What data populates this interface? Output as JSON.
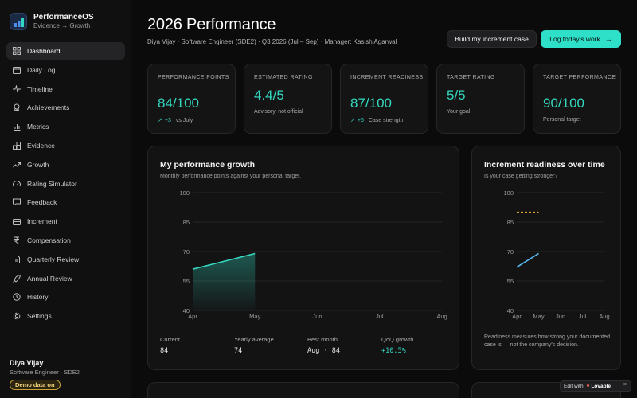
{
  "brand": {
    "title": "PerformanceOS",
    "subtitle": "Evidence → Growth"
  },
  "nav": [
    {
      "label": "Dashboard",
      "icon": "grid-icon",
      "active": true
    },
    {
      "label": "Daily Log",
      "icon": "calendar-icon"
    },
    {
      "label": "Timeline",
      "icon": "pulse-icon"
    },
    {
      "label": "Achievements",
      "icon": "award-icon"
    },
    {
      "label": "Metrics",
      "icon": "bar-chart-icon"
    },
    {
      "label": "Evidence",
      "icon": "blocks-icon"
    },
    {
      "label": "Growth",
      "icon": "trend-up-icon"
    },
    {
      "label": "Rating Simulator",
      "icon": "gauge-icon"
    },
    {
      "label": "Feedback",
      "icon": "message-icon"
    },
    {
      "label": "Increment",
      "icon": "briefcase-icon"
    },
    {
      "label": "Compensation",
      "icon": "rupee-icon"
    },
    {
      "label": "Quarterly Review",
      "icon": "document-icon"
    },
    {
      "label": "Annual Review",
      "icon": "rocket-icon"
    },
    {
      "label": "History",
      "icon": "history-icon"
    },
    {
      "label": "Settings",
      "icon": "gear-icon"
    }
  ],
  "user": {
    "name": "Diya Vijay",
    "role": "Software Engineer · SDE2",
    "badge": "Demo data on"
  },
  "header": {
    "title": "2026 Performance",
    "meta": "Diya Vijay · Software Engineer (SDE2) · Q3 2026 (Jul – Sep) · Manager: Kasish Agarwal",
    "build_button": "Build my increment case",
    "log_button": "Log today's work",
    "log_arrow": "→"
  },
  "kpis": [
    {
      "label": "Performance Points",
      "value": "84/100",
      "delta": "+3",
      "note": "vs July"
    },
    {
      "label": "Estimated Rating",
      "value": "4.4/5",
      "delta": "",
      "note": "Advisory, not official"
    },
    {
      "label": "Increment Readiness",
      "value": "87/100",
      "delta": "+5",
      "note": "Case strength"
    },
    {
      "label": "Target Rating",
      "value": "5/5",
      "delta": "",
      "note": "Your goal"
    },
    {
      "label": "Target Performance",
      "value": "90/100",
      "delta": "",
      "note": "Personal target"
    }
  ],
  "growth": {
    "title": "My performance growth",
    "subtitle": "Monthly performance points against your personal target.",
    "stats": [
      {
        "label": "Current",
        "value": "84"
      },
      {
        "label": "Yearly average",
        "value": "74"
      },
      {
        "label": "Best month",
        "value": "Aug · 84"
      },
      {
        "label": "QoQ growth",
        "value": "+10.5%"
      }
    ]
  },
  "readiness": {
    "title": "Increment readiness over time",
    "subtitle": "Is your case getting stronger?",
    "note": "Readiness measures how strong your documented case is — not the company's decision."
  },
  "lovable": {
    "prefix": "Edit with",
    "name": "Lovable",
    "close": "×"
  },
  "chart_data": [
    {
      "type": "area",
      "title": "My performance growth",
      "x": [
        "Apr",
        "May",
        "Jun",
        "Jul",
        "Aug"
      ],
      "y_ticks": [
        40,
        55,
        70,
        85,
        100
      ],
      "ylim": [
        40,
        100
      ],
      "series": [
        {
          "values": [
            61,
            69,
            null,
            null,
            null
          ]
        }
      ],
      "colors": {
        "line": "#34d8c0",
        "grid": "#262628"
      }
    },
    {
      "type": "line",
      "title": "Increment readiness over time",
      "x": [
        "Apr",
        "May",
        "Jun",
        "Jul",
        "Aug"
      ],
      "y_ticks": [
        40,
        55,
        70,
        85,
        100
      ],
      "ylim": [
        40,
        100
      ],
      "series": [
        {
          "values": [
            62,
            69,
            null,
            null,
            null
          ]
        }
      ],
      "target_line": {
        "value": 90,
        "x_start": "Apr",
        "x_end": "May",
        "color": "#d8a33a"
      },
      "colors": {
        "line": "#5bb8f0",
        "grid": "#262628"
      }
    }
  ]
}
